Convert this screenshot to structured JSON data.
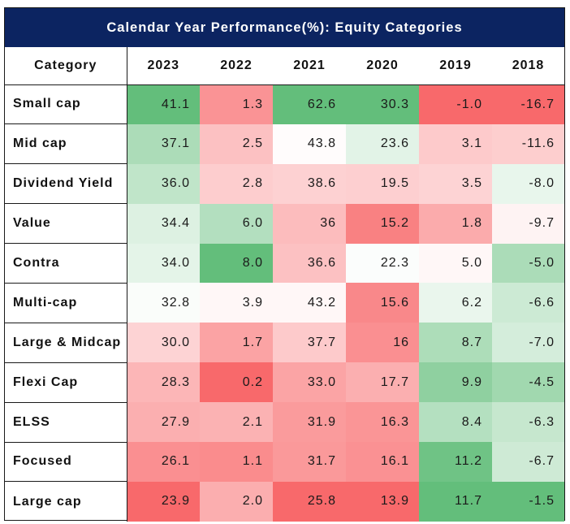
{
  "chart_data": {
    "type": "table",
    "title": "Calendar Year Performance(%): Equity Categories",
    "header": [
      "Category",
      "2023",
      "2022",
      "2021",
      "2020",
      "2019",
      "2018"
    ],
    "columns": [
      "2023",
      "2022",
      "2021",
      "2020",
      "2019",
      "2018"
    ],
    "rows": [
      {
        "category": "Small cap",
        "values": [
          "41.1",
          "1.3",
          "62.6",
          "30.3",
          "-1.0",
          "-16.7"
        ]
      },
      {
        "category": "Mid cap",
        "values": [
          "37.1",
          "2.5",
          "43.8",
          "23.6",
          "3.1",
          "-11.6"
        ]
      },
      {
        "category": "Dividend Yield",
        "values": [
          "36.0",
          "2.8",
          "38.6",
          "19.5",
          "3.5",
          "-8.0"
        ]
      },
      {
        "category": "Value",
        "values": [
          "34.4",
          "6.0",
          "36",
          "15.2",
          "1.8",
          "-9.7"
        ]
      },
      {
        "category": "Contra",
        "values": [
          "34.0",
          "8.0",
          "36.6",
          "22.3",
          "5.0",
          "-5.0"
        ]
      },
      {
        "category": "Multi-cap",
        "values": [
          "32.8",
          "3.9",
          "43.2",
          "15.6",
          "6.2",
          "-6.6"
        ]
      },
      {
        "category": "Large & Midcap",
        "values": [
          "30.0",
          "1.7",
          "37.7",
          "16",
          "8.7",
          "-7.0"
        ]
      },
      {
        "category": "Flexi Cap",
        "values": [
          "28.3",
          "0.2",
          "33.0",
          "17.7",
          "9.9",
          "-4.5"
        ]
      },
      {
        "category": "ELSS",
        "values": [
          "27.9",
          "2.1",
          "31.9",
          "16.3",
          "8.4",
          "-6.3"
        ]
      },
      {
        "category": "Focused",
        "values": [
          "26.1",
          "1.1",
          "31.7",
          "16.1",
          "11.2",
          "-6.7"
        ]
      },
      {
        "category": "Large cap",
        "values": [
          "23.9",
          "2.0",
          "25.8",
          "13.9",
          "11.7",
          "-1.5"
        ]
      }
    ],
    "color_scale": {
      "low": "#f8696b",
      "mid": "#ffffff",
      "high": "#63be7b",
      "direction": "per column"
    }
  }
}
